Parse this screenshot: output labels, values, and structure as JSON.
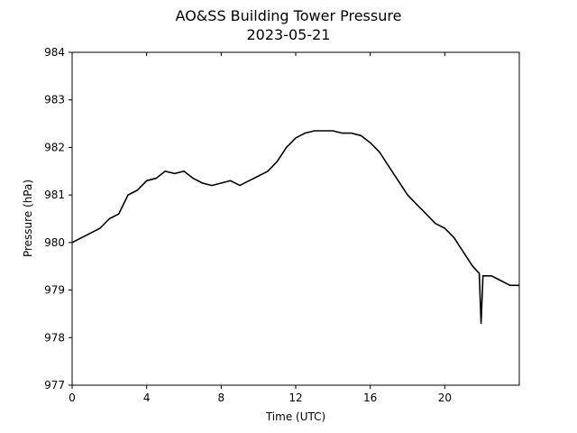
{
  "chart_data": {
    "type": "line",
    "title": "AO&SS Building Tower Pressure",
    "subtitle": "2023-05-21",
    "xlabel": "Time (UTC)",
    "ylabel": "Pressure (hPa)",
    "xlim": [
      0,
      24
    ],
    "ylim": [
      977,
      984
    ],
    "xticks": [
      0,
      4,
      8,
      12,
      16,
      20
    ],
    "xtick_labels": [
      "0",
      "4",
      "8",
      "12",
      "16",
      "20"
    ],
    "yticks": [
      977,
      978,
      979,
      980,
      981,
      982,
      983,
      984
    ],
    "ytick_labels": [
      "977",
      "978",
      "979",
      "980",
      "981",
      "982",
      "983",
      "984"
    ],
    "grid": false,
    "series": [
      {
        "color": "#000000",
        "x": [
          0,
          0.5,
          1,
          1.5,
          2,
          2.5,
          3,
          3.5,
          4,
          4.5,
          5,
          5.5,
          6,
          6.5,
          7,
          7.5,
          8,
          8.5,
          9,
          9.5,
          10,
          10.5,
          11,
          11.5,
          12,
          12.5,
          13,
          13.5,
          14,
          14.5,
          15,
          15.5,
          16,
          16.5,
          17,
          17.5,
          18,
          18.5,
          19,
          19.5,
          20,
          20.5,
          21,
          21.5,
          21.85,
          21.95,
          22.05,
          22.5,
          23,
          23.5,
          24
        ],
        "y": [
          980.0,
          980.1,
          980.2,
          980.3,
          980.5,
          980.6,
          981.0,
          981.1,
          981.3,
          981.35,
          981.5,
          981.45,
          981.5,
          981.35,
          981.25,
          981.2,
          981.25,
          981.3,
          981.2,
          981.3,
          981.4,
          981.5,
          981.7,
          982.0,
          982.2,
          982.3,
          982.35,
          982.35,
          982.35,
          982.3,
          982.3,
          982.25,
          982.1,
          981.9,
          981.6,
          981.3,
          981.0,
          980.8,
          980.6,
          980.4,
          980.3,
          980.1,
          979.8,
          979.5,
          979.35,
          978.3,
          979.3,
          979.3,
          979.2,
          979.1,
          979.1
        ]
      }
    ]
  }
}
